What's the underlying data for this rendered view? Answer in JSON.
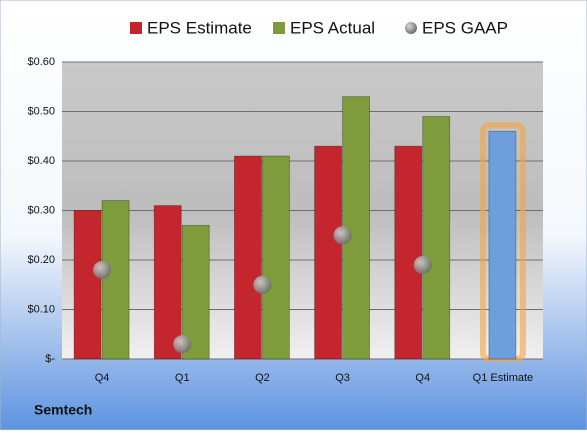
{
  "chart_data": {
    "type": "bar",
    "caption": "Semtech",
    "categories": [
      "Q4",
      "Q1",
      "Q2",
      "Q3",
      "Q4",
      "Q1 Estimate"
    ],
    "series": [
      {
        "name": "EPS Estimate",
        "color": "#c4262e",
        "values": [
          0.3,
          0.31,
          0.41,
          0.43,
          0.43,
          0.46
        ]
      },
      {
        "name": "EPS Actual",
        "color": "#7f9c3c",
        "values": [
          0.32,
          0.27,
          0.41,
          0.53,
          0.49,
          null
        ]
      },
      {
        "name": "EPS GAAP",
        "color": "#8a8a8a",
        "marker": "circle",
        "values": [
          0.18,
          0.03,
          0.15,
          0.25,
          0.19,
          null
        ]
      }
    ],
    "highlight_color": "#6d9fde",
    "highlight_glow": "#f5a340",
    "ylim": [
      0,
      0.6
    ],
    "yticks": [
      {
        "value": 0,
        "label": "$-"
      },
      {
        "value": 0.1,
        "label": "$0.10"
      },
      {
        "value": 0.2,
        "label": "$0.20"
      },
      {
        "value": 0.3,
        "label": "$0.30"
      },
      {
        "value": 0.4,
        "label": "$0.40"
      },
      {
        "value": 0.5,
        "label": "$0.50"
      },
      {
        "value": 0.6,
        "label": "$0.60"
      }
    ],
    "grid": true
  }
}
